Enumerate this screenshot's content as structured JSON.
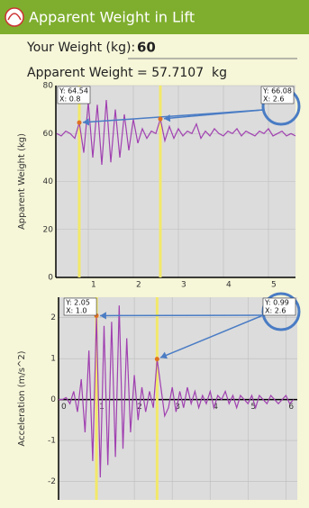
{
  "app": {
    "title": "Apparent Weight in Lift",
    "weight_label": "Your Weight (kg):",
    "weight_value": "60",
    "result": "Apparent Weight = 57.7107  kg"
  },
  "chart_data": [
    {
      "type": "line",
      "y_label": "Apparent Weight (kg)",
      "color": "#a040b0",
      "grid": true,
      "xlim": [
        0.28,
        5.6
      ],
      "ylim": [
        0,
        80
      ],
      "xticks": [
        1,
        2,
        3,
        4,
        5
      ],
      "yticks": [
        0,
        20,
        40,
        60,
        80
      ],
      "x": [
        0.3,
        0.4,
        0.5,
        0.6,
        0.7,
        0.8,
        0.9,
        1.0,
        1.1,
        1.2,
        1.3,
        1.4,
        1.5,
        1.6,
        1.7,
        1.8,
        1.9,
        2.0,
        2.1,
        2.2,
        2.3,
        2.4,
        2.5,
        2.6,
        2.7,
        2.8,
        2.9,
        3.0,
        3.1,
        3.2,
        3.3,
        3.4,
        3.5,
        3.6,
        3.7,
        3.8,
        3.9,
        4.0,
        4.1,
        4.2,
        4.3,
        4.4,
        4.5,
        4.6,
        4.7,
        4.8,
        4.9,
        5.0,
        5.1,
        5.2,
        5.3,
        5.4,
        5.5,
        5.6
      ],
      "values": [
        60,
        59,
        61,
        60,
        58,
        64.54,
        52,
        73,
        50,
        72,
        47,
        74,
        48,
        70,
        50,
        68,
        53,
        66,
        56,
        62,
        58,
        61,
        60,
        66.08,
        57,
        63,
        58,
        62,
        59,
        61,
        60,
        64,
        58,
        61,
        59,
        62,
        60,
        59,
        61,
        60,
        62,
        59,
        61,
        60,
        59,
        61,
        60,
        62,
        59,
        60,
        61,
        59,
        60,
        59
      ],
      "annotations": [
        {
          "x": 0.8,
          "y": 64.54,
          "label_y": "Y: 64.54",
          "label_x": "X: 0.8"
        },
        {
          "x": 2.6,
          "y": 66.08,
          "label_y": "Y: 66.08",
          "label_x": "X: 2.6"
        }
      ]
    },
    {
      "type": "line",
      "y_label": "Acceleration (m/s^2)",
      "color": "#a040b0",
      "grid": true,
      "xlim": [
        0,
        6.3
      ],
      "ylim": [
        -2.45,
        2.5
      ],
      "xticks": [
        0,
        1,
        2,
        3,
        4,
        5,
        6
      ],
      "yticks": [
        -2,
        -1,
        0,
        1,
        2
      ],
      "x": [
        0,
        0.1,
        0.2,
        0.3,
        0.4,
        0.5,
        0.6,
        0.7,
        0.8,
        0.9,
        1.0,
        1.1,
        1.2,
        1.3,
        1.4,
        1.5,
        1.6,
        1.7,
        1.8,
        1.9,
        2.0,
        2.1,
        2.2,
        2.3,
        2.4,
        2.5,
        2.6,
        2.7,
        2.8,
        2.9,
        3.0,
        3.1,
        3.2,
        3.3,
        3.4,
        3.5,
        3.6,
        3.7,
        3.8,
        3.9,
        4.0,
        4.1,
        4.2,
        4.3,
        4.4,
        4.5,
        4.6,
        4.7,
        4.8,
        4.9,
        5.0,
        5.1,
        5.2,
        5.3,
        5.4,
        5.5,
        5.6,
        5.7,
        5.8,
        5.9,
        6.0,
        6.1,
        6.2
      ],
      "values": [
        0,
        0,
        0.05,
        -0.1,
        0.2,
        -0.3,
        0.5,
        -0.8,
        1.2,
        -1.5,
        2.05,
        -1.9,
        1.8,
        -1.6,
        1.9,
        -1.4,
        2.3,
        -1.2,
        1.5,
        -0.8,
        0.6,
        -0.5,
        0.3,
        -0.3,
        0.2,
        -0.2,
        0.99,
        0.3,
        -0.4,
        -0.2,
        0.3,
        -0.3,
        0.2,
        -0.2,
        0.3,
        -0.1,
        0.2,
        -0.2,
        0.1,
        -0.1,
        0.2,
        -0.2,
        0.1,
        0,
        0.2,
        -0.1,
        0.1,
        -0.2,
        0.1,
        0,
        -0.1,
        0.1,
        -0.2,
        0.1,
        0,
        -0.1,
        0.1,
        0,
        -0.1,
        0,
        0.1,
        -0.1,
        0
      ],
      "annotations": [
        {
          "x": 1.0,
          "y": 2.05,
          "label_y": "Y: 2.05",
          "label_x": "X: 1.0"
        },
        {
          "x": 2.6,
          "y": 0.99,
          "label_y": "Y: 0.99",
          "label_x": "X: 2.6"
        }
      ]
    }
  ]
}
